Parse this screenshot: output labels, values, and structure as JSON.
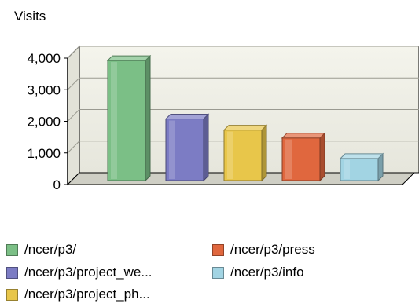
{
  "chart_data": {
    "type": "bar",
    "title": "",
    "xlabel": "",
    "ylabel": "Visits",
    "ylim": [
      0,
      4000
    ],
    "yticks": [
      "4,000",
      "3,000",
      "2,000",
      "1,000",
      "0"
    ],
    "ytick_values": [
      4000,
      3000,
      2000,
      1000,
      0
    ],
    "grid": true,
    "legend_position": "bottom",
    "categories": [
      "/ncer/p3/",
      "/ncer/p3/project_we...",
      "/ncer/p3/project_ph...",
      "/ncer/p3/press",
      "/ncer/p3/info"
    ],
    "values": [
      3700,
      1850,
      1500,
      1250,
      600
    ],
    "colors": [
      "#7bbf86",
      "#7c7cc4",
      "#e8c64a",
      "#e0673e",
      "#a2d4e3"
    ]
  }
}
